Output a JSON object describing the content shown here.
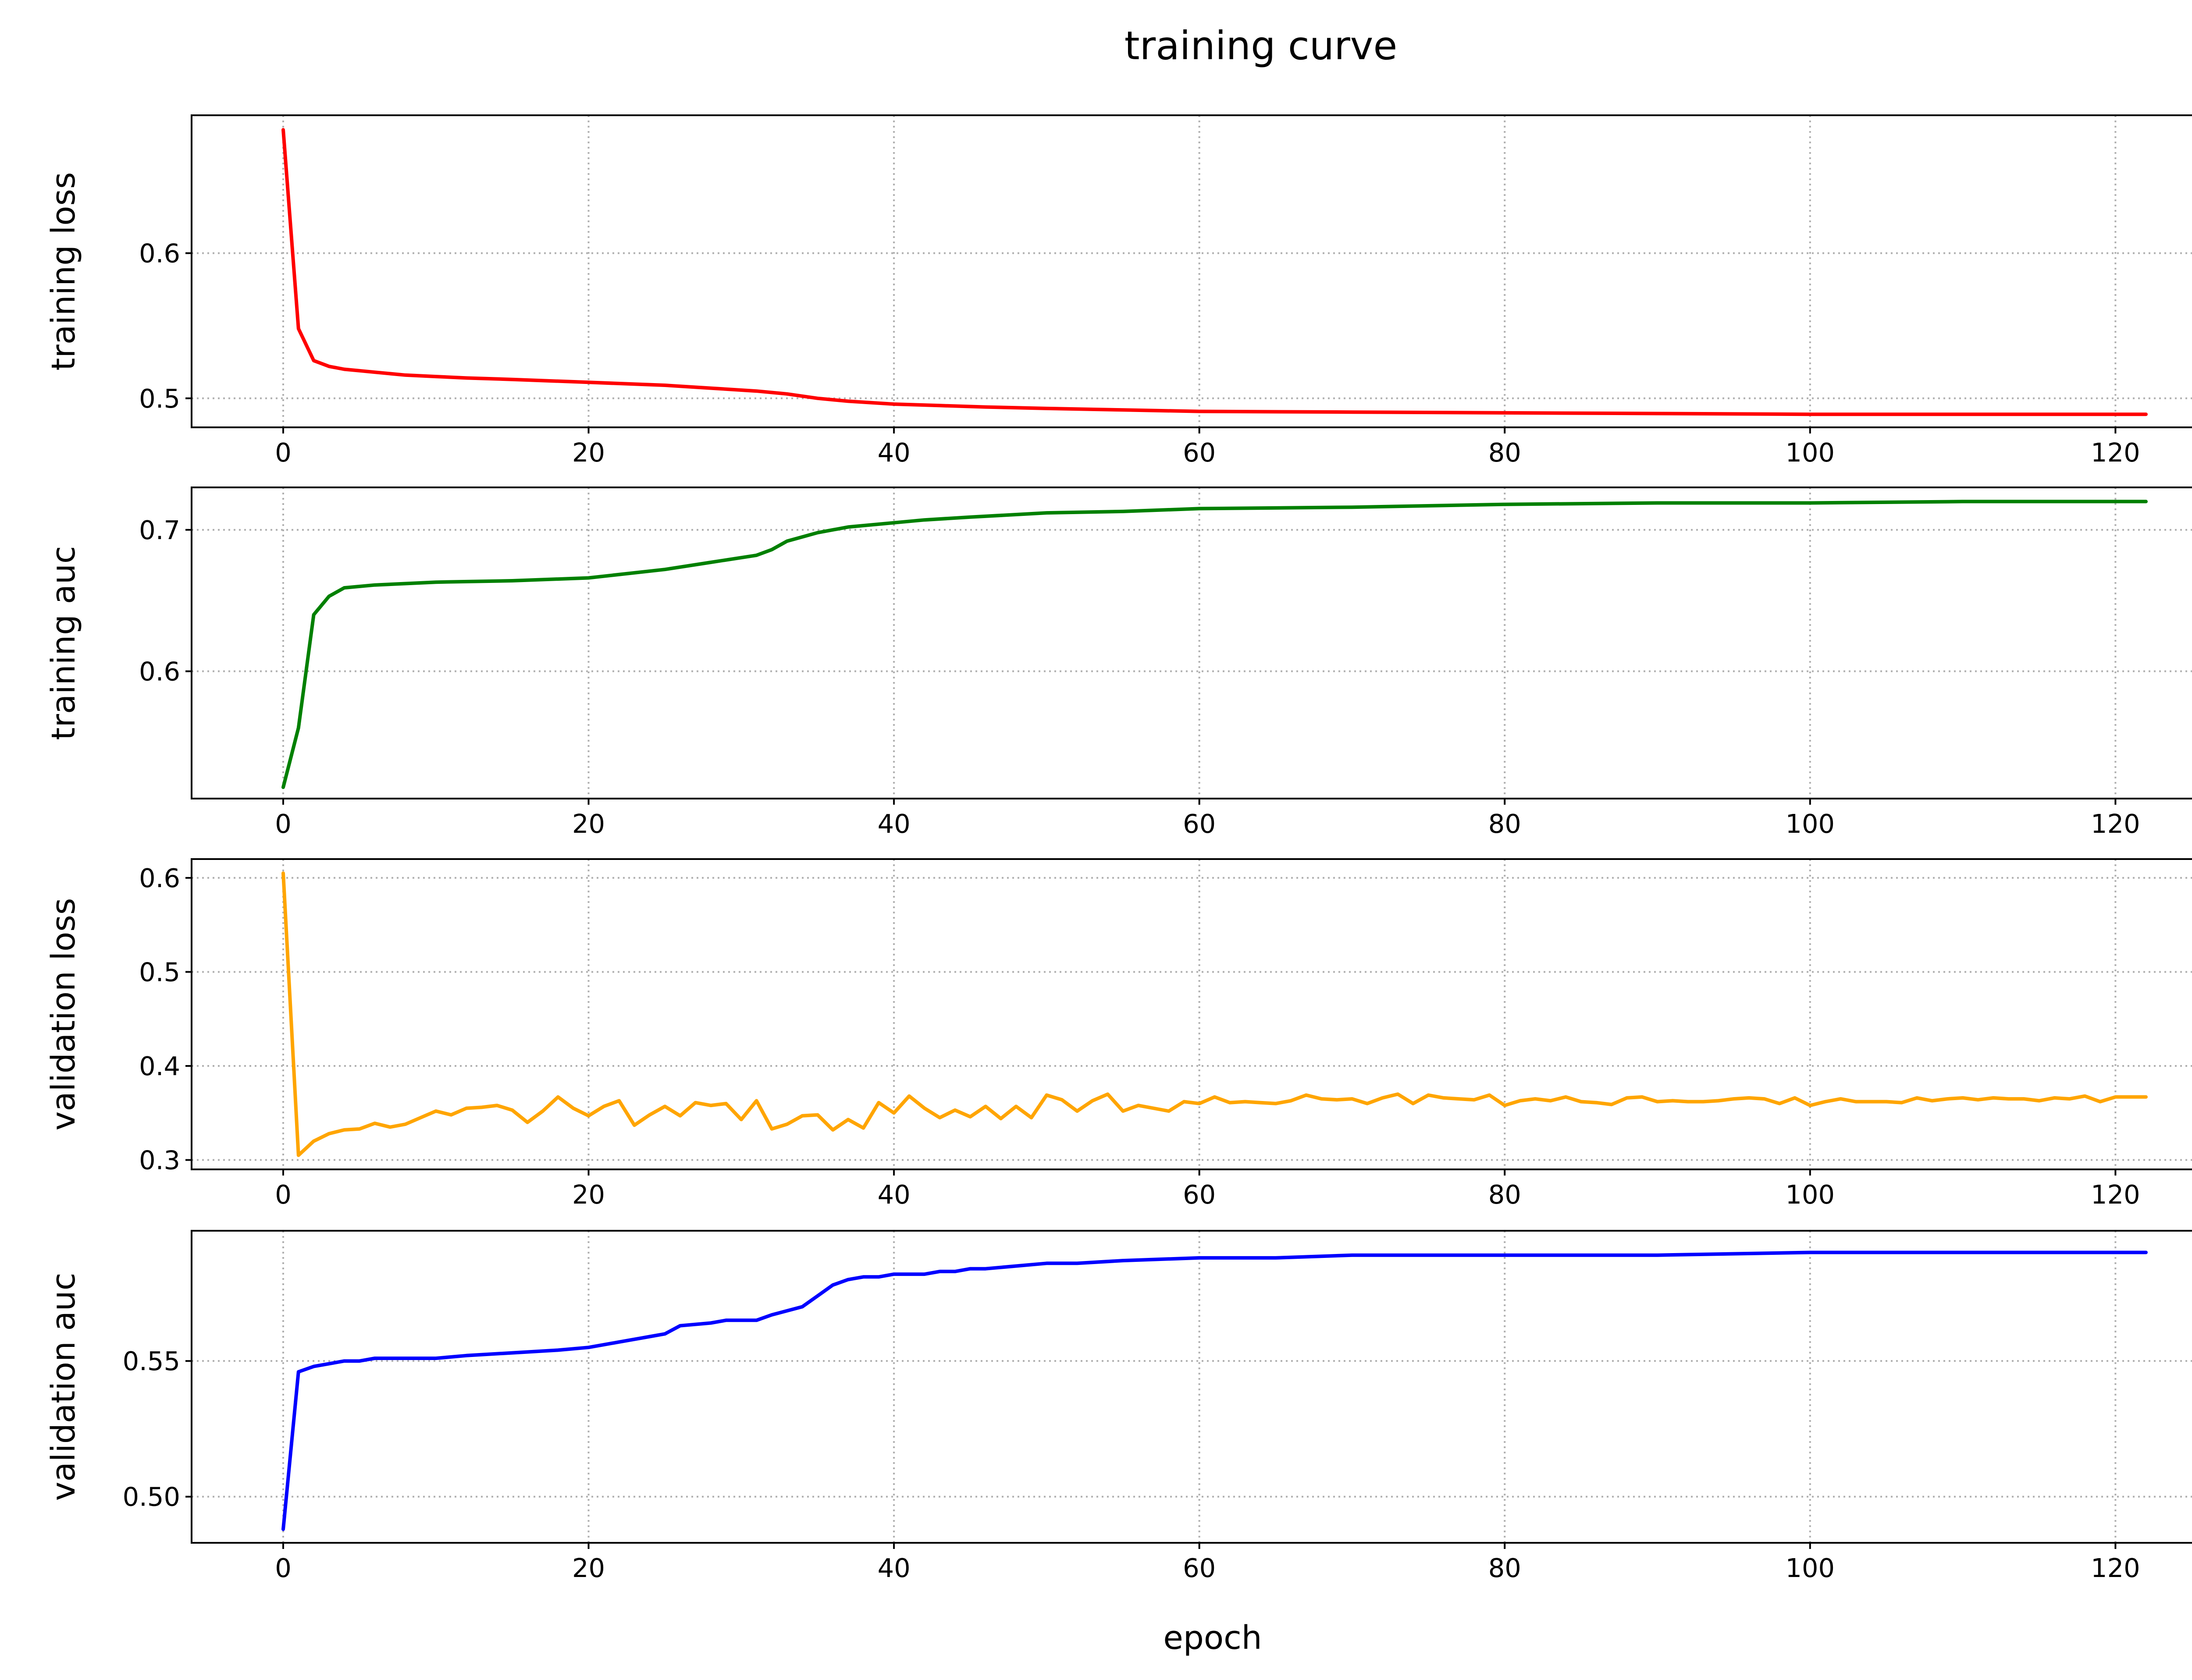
{
  "chart_data": {
    "type": "line",
    "title": "training curve",
    "xlabel": "epoch",
    "grid": true,
    "xlim": [
      -6,
      128
    ],
    "xticks": [
      0,
      20,
      40,
      60,
      80,
      100,
      120
    ],
    "subplots": [
      {
        "id": "training-loss",
        "ylabel": "training loss",
        "color": "#ff0000",
        "ylim": [
          0.48,
          0.695
        ],
        "yticks": [
          0.5,
          0.6
        ],
        "ytick_labels": [
          "0.5",
          "0.6"
        ],
        "x": [
          0,
          1,
          2,
          3,
          4,
          5,
          6,
          8,
          10,
          12,
          15,
          20,
          25,
          28,
          31,
          33,
          35,
          37,
          40,
          43,
          46,
          50,
          55,
          60,
          70,
          80,
          90,
          100,
          110,
          122
        ],
        "y": [
          0.685,
          0.548,
          0.526,
          0.522,
          0.52,
          0.519,
          0.518,
          0.516,
          0.515,
          0.514,
          0.513,
          0.511,
          0.509,
          0.507,
          0.505,
          0.503,
          0.5,
          0.498,
          0.496,
          0.495,
          0.494,
          0.493,
          0.492,
          0.491,
          0.4905,
          0.49,
          0.4895,
          0.489,
          0.489,
          0.489
        ]
      },
      {
        "id": "training-auc",
        "ylabel": "training auc",
        "color": "#008000",
        "ylim": [
          0.51,
          0.73
        ],
        "yticks": [
          0.6,
          0.7
        ],
        "ytick_labels": [
          "0.6",
          "0.7"
        ],
        "x": [
          0,
          1,
          2,
          3,
          4,
          6,
          8,
          10,
          15,
          20,
          25,
          28,
          31,
          32,
          33,
          34,
          35,
          37,
          40,
          42,
          45,
          50,
          55,
          60,
          70,
          80,
          90,
          100,
          110,
          122
        ],
        "y": [
          0.518,
          0.56,
          0.64,
          0.653,
          0.659,
          0.661,
          0.662,
          0.663,
          0.664,
          0.666,
          0.672,
          0.677,
          0.682,
          0.686,
          0.692,
          0.695,
          0.698,
          0.702,
          0.705,
          0.707,
          0.709,
          0.712,
          0.713,
          0.715,
          0.716,
          0.718,
          0.719,
          0.719,
          0.72,
          0.72
        ]
      },
      {
        "id": "validation-loss",
        "ylabel": "validation loss",
        "color": "#ffa500",
        "ylim": [
          0.29,
          0.62
        ],
        "yticks": [
          0.3,
          0.4,
          0.5,
          0.6
        ],
        "ytick_labels": [
          "0.3",
          "0.4",
          "0.5",
          "0.6"
        ],
        "x": [
          0,
          1,
          2,
          3,
          4,
          5,
          6,
          7,
          8,
          9,
          10,
          11,
          12,
          13,
          14,
          15,
          16,
          17,
          18,
          19,
          20,
          21,
          22,
          23,
          24,
          25,
          26,
          27,
          28,
          29,
          30,
          31,
          32,
          33,
          34,
          35,
          36,
          37,
          38,
          39,
          40,
          41,
          42,
          43,
          44,
          45,
          46,
          47,
          48,
          49,
          50,
          51,
          52,
          53,
          54,
          55,
          56,
          57,
          58,
          59,
          60,
          61,
          62,
          63,
          64,
          65,
          66,
          67,
          68,
          69,
          70,
          71,
          72,
          73,
          74,
          75,
          76,
          77,
          78,
          79,
          80,
          81,
          82,
          83,
          84,
          85,
          86,
          87,
          88,
          89,
          90,
          91,
          92,
          93,
          94,
          95,
          96,
          97,
          98,
          99,
          100,
          101,
          102,
          103,
          104,
          105,
          106,
          107,
          108,
          109,
          110,
          111,
          112,
          113,
          114,
          115,
          116,
          117,
          118,
          119,
          120,
          121,
          122
        ],
        "y": [
          0.605,
          0.305,
          0.32,
          0.328,
          0.332,
          0.333,
          0.339,
          0.335,
          0.338,
          0.345,
          0.352,
          0.348,
          0.355,
          0.356,
          0.358,
          0.353,
          0.34,
          0.352,
          0.367,
          0.355,
          0.347,
          0.357,
          0.363,
          0.337,
          0.348,
          0.357,
          0.347,
          0.361,
          0.358,
          0.36,
          0.343,
          0.363,
          0.333,
          0.338,
          0.347,
          0.348,
          0.332,
          0.343,
          0.334,
          0.361,
          0.35,
          0.368,
          0.355,
          0.345,
          0.353,
          0.346,
          0.357,
          0.344,
          0.357,
          0.345,
          0.369,
          0.364,
          0.352,
          0.363,
          0.37,
          0.352,
          0.358,
          0.355,
          0.352,
          0.362,
          0.36,
          0.367,
          0.361,
          0.362,
          0.361,
          0.36,
          0.363,
          0.369,
          0.365,
          0.364,
          0.365,
          0.36,
          0.366,
          0.37,
          0.36,
          0.369,
          0.366,
          0.365,
          0.364,
          0.369,
          0.358,
          0.363,
          0.365,
          0.363,
          0.367,
          0.362,
          0.361,
          0.359,
          0.366,
          0.367,
          0.362,
          0.363,
          0.362,
          0.362,
          0.363,
          0.365,
          0.366,
          0.365,
          0.36,
          0.366,
          0.358,
          0.362,
          0.365,
          0.362,
          0.362,
          0.362,
          0.361,
          0.366,
          0.363,
          0.365,
          0.366,
          0.364,
          0.366,
          0.365,
          0.365,
          0.363,
          0.366,
          0.365,
          0.368,
          0.362,
          0.367,
          0.367,
          0.367
        ]
      },
      {
        "id": "validation-auc",
        "ylabel": "validation auc",
        "color": "#0000ff",
        "ylim": [
          0.483,
          0.598
        ],
        "yticks": [
          0.5,
          0.55
        ],
        "ytick_labels": [
          "0.50",
          "0.55"
        ],
        "x": [
          0,
          1,
          2,
          3,
          4,
          5,
          6,
          8,
          10,
          12,
          15,
          18,
          20,
          22,
          24,
          25,
          26,
          28,
          29,
          30,
          31,
          32,
          34,
          35,
          36,
          37,
          38,
          39,
          40,
          41,
          42,
          43,
          44,
          45,
          46,
          48,
          50,
          52,
          55,
          60,
          65,
          70,
          80,
          90,
          100,
          110,
          122
        ],
        "y": [
          0.488,
          0.546,
          0.548,
          0.549,
          0.55,
          0.55,
          0.551,
          0.551,
          0.551,
          0.552,
          0.553,
          0.554,
          0.555,
          0.557,
          0.559,
          0.56,
          0.563,
          0.564,
          0.565,
          0.565,
          0.565,
          0.567,
          0.57,
          0.574,
          0.578,
          0.58,
          0.581,
          0.581,
          0.582,
          0.582,
          0.582,
          0.583,
          0.583,
          0.584,
          0.584,
          0.585,
          0.586,
          0.586,
          0.587,
          0.588,
          0.588,
          0.589,
          0.589,
          0.589,
          0.59,
          0.59,
          0.59
        ]
      }
    ]
  }
}
